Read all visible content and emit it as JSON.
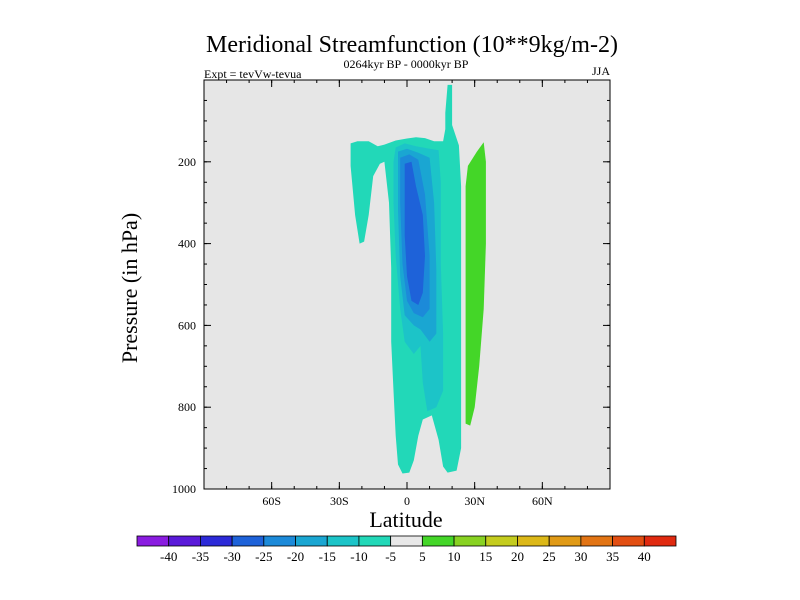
{
  "chart_data": {
    "type": "heatmap",
    "title": "Meridional Streamfunction (10**9kg/m-2)",
    "subtitle": "0264kyr BP - 0000kyr BP",
    "left_annotation": "Expt = tevVw-tevua",
    "right_annotation": "JJA",
    "xlabel": "Latitude",
    "ylabel": "Pressure (in hPa)",
    "xlim": [
      -90,
      90
    ],
    "ylim": [
      1000,
      0
    ],
    "x_ticks": [
      {
        "value": -60,
        "label": "60S"
      },
      {
        "value": -30,
        "label": "30S"
      },
      {
        "value": 0,
        "label": "0"
      },
      {
        "value": 30,
        "label": "30N"
      },
      {
        "value": 60,
        "label": "60N"
      }
    ],
    "y_ticks": [
      {
        "value": 200,
        "label": "200"
      },
      {
        "value": 400,
        "label": "400"
      },
      {
        "value": 600,
        "label": "600"
      },
      {
        "value": 800,
        "label": "800"
      },
      {
        "value": 1000,
        "label": "1000"
      }
    ],
    "colorbar": {
      "labels": [
        "-40",
        "-35",
        "-30",
        "-25",
        "-20",
        "-15",
        "-10",
        "-5",
        "5",
        "10",
        "15",
        "20",
        "25",
        "30",
        "35",
        "40"
      ],
      "colors": [
        "#8a1ce0",
        "#5a1ad9",
        "#2c2ad8",
        "#1e62d9",
        "#1c8ad9",
        "#1aa6d2",
        "#1cc4c8",
        "#22d8b8",
        "#e8e8e8",
        "#44d628",
        "#88d222",
        "#c4cc1e",
        "#dcb818",
        "#e09a16",
        "#e27414",
        "#e24e12",
        "#e02a10"
      ]
    },
    "plot_background": "#e6e6e6",
    "contour_regions": [
      {
        "level": "-5",
        "color": "#22d8b8",
        "lat_pressure": [
          [
            -25,
            155
          ],
          [
            -22,
            150
          ],
          [
            -17,
            150
          ],
          [
            -13,
            162
          ],
          [
            -10,
            158
          ],
          [
            -5,
            148
          ],
          [
            0,
            143
          ],
          [
            4,
            140
          ],
          [
            8,
            142
          ],
          [
            12,
            150
          ],
          [
            16,
            150
          ],
          [
            17,
            120
          ],
          [
            17,
            80
          ],
          [
            18,
            12
          ],
          [
            20,
            12
          ],
          [
            20,
            110
          ],
          [
            23,
            160
          ],
          [
            24,
            260
          ],
          [
            24,
            500
          ],
          [
            24,
            700
          ],
          [
            24,
            900
          ],
          [
            22,
            955
          ],
          [
            18,
            960
          ],
          [
            16,
            945
          ],
          [
            14,
            880
          ],
          [
            11,
            820
          ],
          [
            7,
            830
          ],
          [
            5,
            870
          ],
          [
            3,
            930
          ],
          [
            1,
            960
          ],
          [
            -2,
            962
          ],
          [
            -4,
            940
          ],
          [
            -5,
            870
          ],
          [
            -6,
            760
          ],
          [
            -7,
            640
          ],
          [
            -7,
            460
          ],
          [
            -8,
            300
          ],
          [
            -10,
            200
          ],
          [
            -12,
            205
          ],
          [
            -15,
            235
          ],
          [
            -17,
            330
          ],
          [
            -19,
            395
          ],
          [
            -21,
            400
          ],
          [
            -23,
            330
          ],
          [
            -25,
            210
          ]
        ]
      },
      {
        "level": "-10",
        "color": "#1cc4c8",
        "lat_pressure": [
          [
            -5,
            165
          ],
          [
            -1,
            155
          ],
          [
            4,
            162
          ],
          [
            10,
            168
          ],
          [
            14,
            172
          ],
          [
            15,
            250
          ],
          [
            15,
            450
          ],
          [
            16,
            620
          ],
          [
            16,
            760
          ],
          [
            13,
            800
          ],
          [
            9,
            810
          ],
          [
            7,
            740
          ],
          [
            6,
            650
          ],
          [
            3,
            670
          ],
          [
            -1,
            640
          ],
          [
            -3,
            560
          ],
          [
            -5,
            430
          ],
          [
            -6,
            300
          ],
          [
            -6,
            200
          ]
        ]
      },
      {
        "level": "-15",
        "color": "#1aa6d2",
        "lat_pressure": [
          [
            -4,
            175
          ],
          [
            0,
            168
          ],
          [
            5,
            178
          ],
          [
            10,
            190
          ],
          [
            12,
            300
          ],
          [
            13,
            460
          ],
          [
            13,
            620
          ],
          [
            10,
            640
          ],
          [
            6,
            610
          ],
          [
            3,
            600
          ],
          [
            -1,
            575
          ],
          [
            -3,
            480
          ],
          [
            -4,
            320
          ]
        ]
      },
      {
        "level": "-20",
        "color": "#1c8ad9",
        "lat_pressure": [
          [
            -3,
            190
          ],
          [
            1,
            182
          ],
          [
            5,
            195
          ],
          [
            8,
            280
          ],
          [
            10,
            430
          ],
          [
            10,
            560
          ],
          [
            7,
            580
          ],
          [
            3,
            570
          ],
          [
            0,
            540
          ],
          [
            -2,
            450
          ],
          [
            -3,
            300
          ]
        ]
      },
      {
        "level": "-25",
        "color": "#1e62d9",
        "lat_pressure": [
          [
            -1,
            205
          ],
          [
            2,
            200
          ],
          [
            4,
            260
          ],
          [
            7,
            330
          ],
          [
            8,
            430
          ],
          [
            7,
            520
          ],
          [
            5,
            550
          ],
          [
            2,
            540
          ],
          [
            0,
            480
          ],
          [
            -1,
            380
          ]
        ]
      },
      {
        "level": "5",
        "color": "#44d628",
        "lat_pressure": [
          [
            27,
            210
          ],
          [
            31,
            175
          ],
          [
            34,
            152
          ],
          [
            35,
            200
          ],
          [
            35,
            400
          ],
          [
            34,
            560
          ],
          [
            32,
            700
          ],
          [
            30,
            800
          ],
          [
            28,
            845
          ],
          [
            26,
            840
          ],
          [
            26,
            600
          ],
          [
            26,
            380
          ],
          [
            26,
            260
          ]
        ]
      }
    ]
  }
}
